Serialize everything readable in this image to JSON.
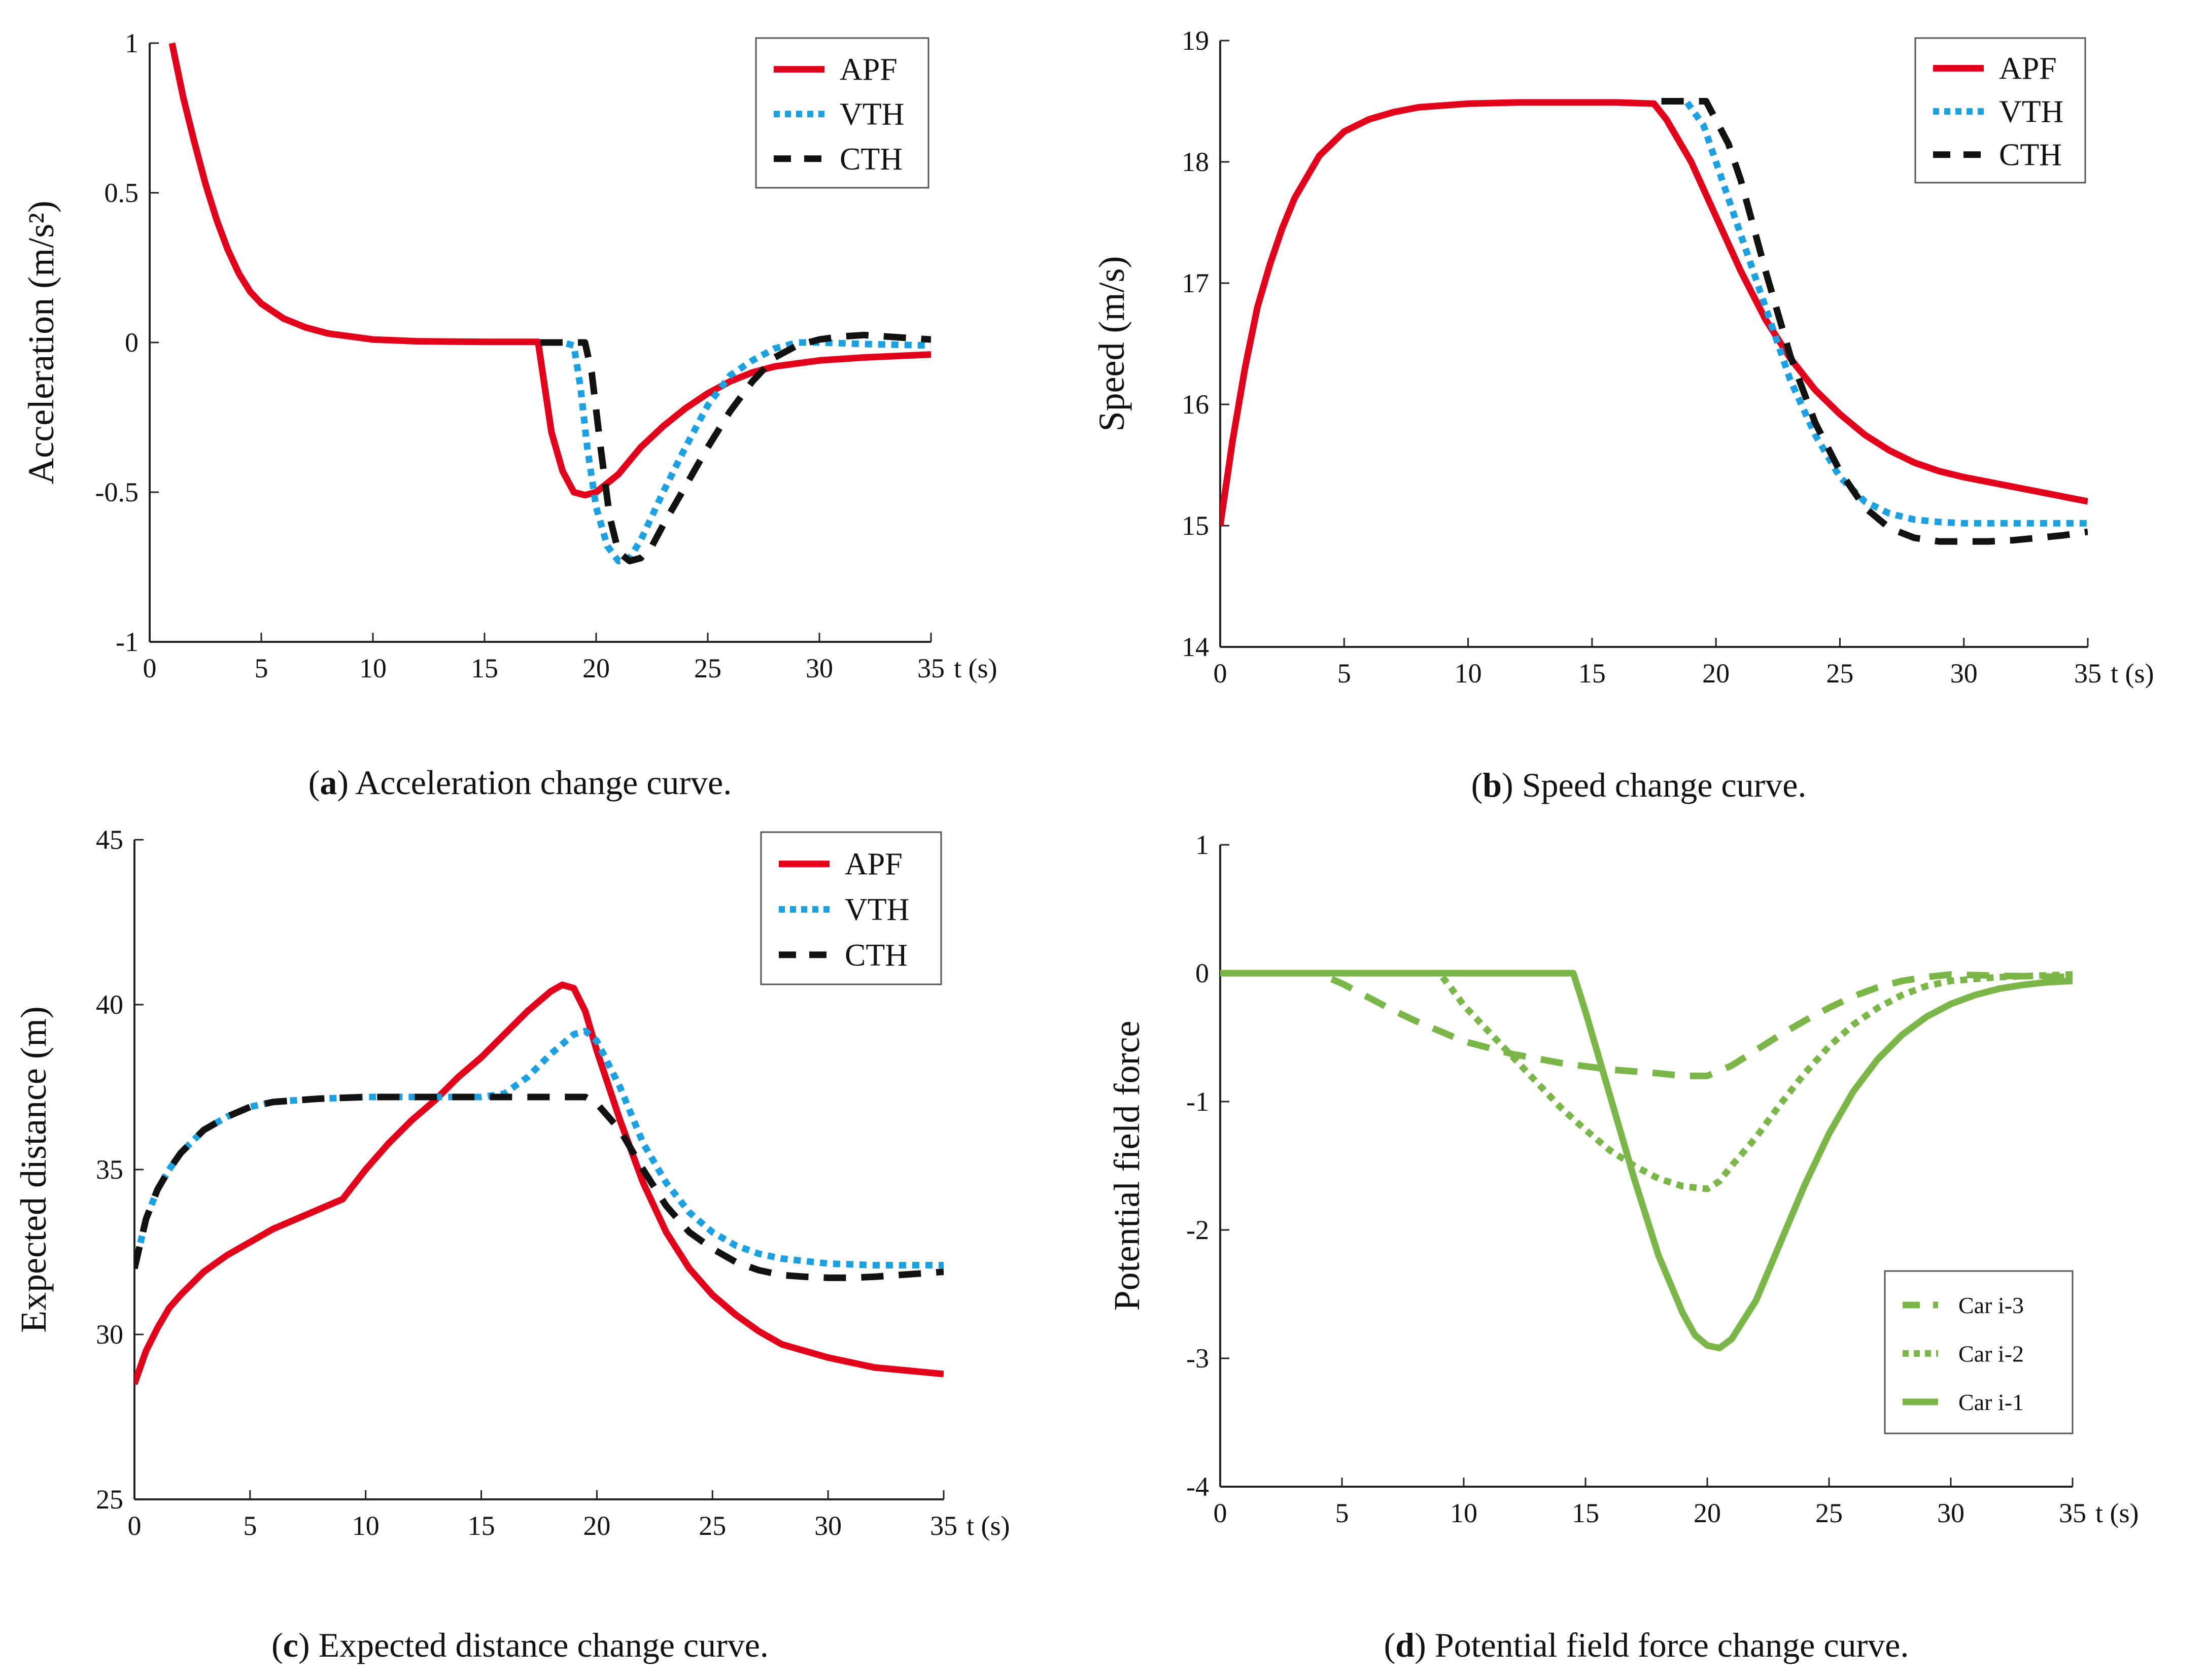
{
  "chart_data": [
    {
      "id": "a",
      "type": "line",
      "ylabel": "Acceleration (m/s²)",
      "xlabel": "t (s)",
      "xlim": [
        0,
        35
      ],
      "ylim": [
        -1,
        1
      ],
      "xticks": [
        0,
        5,
        10,
        15,
        20,
        25,
        30,
        35
      ],
      "yticks": [
        -1,
        -0.5,
        0,
        0.5,
        1
      ],
      "legend_position": "top-right",
      "caption": {
        "letter": "a",
        "text": "Acceleration change curve."
      },
      "series": [
        {
          "name": "APF",
          "color": "#e2001a",
          "style": "solid",
          "x": [
            1,
            1.5,
            2,
            2.5,
            3,
            3.5,
            4,
            4.5,
            5,
            6,
            7,
            8,
            10,
            12,
            15,
            17.4,
            17.7,
            18,
            18.5,
            19,
            19.5,
            20,
            21,
            22,
            23,
            24,
            25,
            26,
            27,
            28,
            30,
            32,
            35
          ],
          "y": [
            1.0,
            0.82,
            0.67,
            0.53,
            0.41,
            0.31,
            0.23,
            0.17,
            0.13,
            0.08,
            0.05,
            0.03,
            0.01,
            0.004,
            0.002,
            0.002,
            -0.15,
            -0.3,
            -0.43,
            -0.5,
            -0.51,
            -0.5,
            -0.44,
            -0.35,
            -0.28,
            -0.22,
            -0.17,
            -0.13,
            -0.1,
            -0.08,
            -0.06,
            -0.05,
            -0.04
          ]
        },
        {
          "name": "VTH",
          "color": "#1ba1e2",
          "style": "dotted",
          "x": [
            17.5,
            18.5,
            19,
            19.3,
            19.6,
            20,
            20.5,
            21,
            21.5,
            22,
            22.5,
            23,
            24,
            25,
            26,
            27,
            28,
            29,
            30,
            32,
            35
          ],
          "y": [
            0,
            0,
            -0.01,
            -0.15,
            -0.35,
            -0.55,
            -0.68,
            -0.73,
            -0.72,
            -0.66,
            -0.58,
            -0.5,
            -0.35,
            -0.21,
            -0.11,
            -0.06,
            -0.02,
            0.0,
            0.0,
            -0.005,
            -0.01
          ]
        },
        {
          "name": "CTH",
          "color": "#111111",
          "style": "dashed",
          "x": [
            17.5,
            19.5,
            19.8,
            20.2,
            20.6,
            21,
            21.5,
            22,
            22.5,
            23,
            24,
            25,
            26,
            27,
            28,
            29,
            30,
            31,
            32,
            33,
            34,
            35
          ],
          "y": [
            0,
            0,
            -0.1,
            -0.35,
            -0.58,
            -0.7,
            -0.73,
            -0.72,
            -0.68,
            -0.61,
            -0.48,
            -0.35,
            -0.23,
            -0.13,
            -0.05,
            -0.01,
            0.01,
            0.02,
            0.025,
            0.02,
            0.015,
            0.01
          ]
        }
      ]
    },
    {
      "id": "b",
      "type": "line",
      "ylabel": "Speed (m/s)",
      "xlabel": "t (s)",
      "xlim": [
        0,
        35
      ],
      "ylim": [
        14,
        19
      ],
      "xticks": [
        0,
        5,
        10,
        15,
        20,
        25,
        30,
        35
      ],
      "yticks": [
        14,
        15,
        16,
        17,
        18,
        19
      ],
      "legend_position": "top-right",
      "caption": {
        "letter": "b",
        "text": "Speed change curve."
      },
      "series": [
        {
          "name": "APF",
          "color": "#e2001a",
          "style": "solid",
          "x": [
            0,
            0.5,
            1,
            1.5,
            2,
            2.5,
            3,
            4,
            5,
            6,
            7,
            8,
            10,
            12,
            14,
            16,
            17.5,
            18,
            19,
            20,
            21,
            22,
            23,
            24,
            25,
            26,
            27,
            28,
            29,
            30,
            32,
            35
          ],
          "y": [
            15.0,
            15.7,
            16.3,
            16.8,
            17.15,
            17.45,
            17.7,
            18.05,
            18.25,
            18.35,
            18.41,
            18.45,
            18.48,
            18.49,
            18.49,
            18.49,
            18.48,
            18.35,
            18.0,
            17.55,
            17.1,
            16.7,
            16.38,
            16.12,
            15.92,
            15.75,
            15.62,
            15.52,
            15.45,
            15.4,
            15.32,
            15.2
          ]
        },
        {
          "name": "VTH",
          "color": "#1ba1e2",
          "style": "dotted",
          "x": [
            17.8,
            18.8,
            19.5,
            20,
            21,
            22,
            23,
            24,
            25,
            26,
            27,
            28,
            29,
            30,
            32,
            35
          ],
          "y": [
            18.5,
            18.5,
            18.3,
            18.0,
            17.4,
            16.8,
            16.2,
            15.75,
            15.4,
            15.2,
            15.1,
            15.05,
            15.03,
            15.02,
            15.02,
            15.02
          ]
        },
        {
          "name": "CTH",
          "color": "#111111",
          "style": "dashed",
          "x": [
            17.8,
            19.6,
            20.5,
            21,
            22,
            23,
            24,
            25,
            26,
            27,
            28,
            29,
            30,
            31,
            32,
            33,
            34,
            35
          ],
          "y": [
            18.5,
            18.5,
            18.15,
            17.85,
            17.1,
            16.4,
            15.85,
            15.45,
            15.15,
            14.98,
            14.9,
            14.87,
            14.87,
            14.87,
            14.88,
            14.9,
            14.92,
            14.95
          ]
        }
      ]
    },
    {
      "id": "c",
      "type": "line",
      "ylabel": "Expected distance (m)",
      "xlabel": "t (s)",
      "xlim": [
        0,
        35
      ],
      "ylim": [
        25,
        45
      ],
      "xticks": [
        0,
        5,
        10,
        15,
        20,
        25,
        30,
        35
      ],
      "yticks": [
        25,
        30,
        35,
        40,
        45
      ],
      "legend_position": "top-right",
      "caption": {
        "letter": "c",
        "text": "Expected distance change curve."
      },
      "series": [
        {
          "name": "APF",
          "color": "#e2001a",
          "style": "solid",
          "x": [
            0,
            0.5,
            1,
            1.5,
            2,
            3,
            4,
            5,
            6,
            7,
            8,
            9,
            10,
            11,
            12,
            13,
            14,
            15,
            16,
            17,
            18,
            18.5,
            19,
            19.5,
            20,
            21,
            22,
            23,
            24,
            25,
            26,
            27,
            28,
            30,
            32,
            35
          ],
          "y": [
            28.5,
            29.5,
            30.2,
            30.8,
            31.2,
            31.9,
            32.4,
            32.8,
            33.2,
            33.5,
            33.8,
            34.1,
            35.0,
            35.8,
            36.5,
            37.1,
            37.8,
            38.4,
            39.1,
            39.8,
            40.4,
            40.6,
            40.5,
            39.8,
            38.6,
            36.5,
            34.6,
            33.1,
            32.0,
            31.2,
            30.6,
            30.1,
            29.7,
            29.3,
            29.0,
            28.8
          ]
        },
        {
          "name": "VTH",
          "color": "#1ba1e2",
          "style": "dotted",
          "x": [
            0,
            0.5,
            1,
            1.5,
            2,
            3,
            4,
            5,
            6,
            7,
            8,
            10,
            12,
            14,
            15,
            16,
            17,
            18,
            19,
            19.5,
            20,
            21,
            22,
            23,
            24,
            25,
            26,
            27,
            28,
            30,
            32,
            35
          ],
          "y": [
            32.0,
            33.5,
            34.4,
            35.0,
            35.5,
            36.2,
            36.6,
            36.9,
            37.05,
            37.1,
            37.15,
            37.2,
            37.2,
            37.2,
            37.2,
            37.3,
            37.8,
            38.5,
            39.1,
            39.2,
            38.9,
            37.5,
            35.8,
            34.6,
            33.7,
            33.1,
            32.7,
            32.45,
            32.3,
            32.15,
            32.1,
            32.1
          ]
        },
        {
          "name": "CTH",
          "color": "#111111",
          "style": "dashed",
          "x": [
            0,
            0.5,
            1,
            1.5,
            2,
            3,
            4,
            5,
            6,
            7,
            8,
            10,
            12,
            14,
            16,
            18,
            19.5,
            20,
            21,
            22,
            23,
            24,
            25,
            26,
            27,
            28,
            29,
            30,
            31,
            32,
            33,
            34,
            35
          ],
          "y": [
            32.0,
            33.5,
            34.4,
            35.0,
            35.5,
            36.2,
            36.6,
            36.9,
            37.05,
            37.1,
            37.15,
            37.2,
            37.2,
            37.2,
            37.2,
            37.2,
            37.2,
            37.0,
            36.2,
            35.0,
            33.9,
            33.1,
            32.6,
            32.2,
            31.95,
            31.8,
            31.75,
            31.72,
            31.72,
            31.75,
            31.8,
            31.85,
            31.9
          ]
        }
      ]
    },
    {
      "id": "d",
      "type": "line",
      "ylabel": "Potential field force",
      "xlabel": "t (s)",
      "xlim": [
        0,
        35
      ],
      "ylim": [
        -4,
        1
      ],
      "xticks": [
        0,
        5,
        10,
        15,
        20,
        25,
        30,
        35
      ],
      "yticks": [
        -4,
        -3,
        -2,
        -1,
        0,
        1
      ],
      "legend_position": "bottom-right",
      "caption": {
        "letter": "d",
        "text": "Potential field force change curve."
      },
      "series": [
        {
          "name": "Car i-3",
          "color": "#7ab648",
          "style": "dashed",
          "x": [
            0,
            4,
            5,
            6,
            7,
            8,
            9,
            10,
            12,
            14,
            16,
            18,
            19,
            20,
            21,
            22,
            23,
            24,
            25,
            26,
            27,
            28,
            29,
            30,
            32,
            35
          ],
          "y": [
            0,
            0,
            -0.08,
            -0.18,
            -0.28,
            -0.37,
            -0.45,
            -0.53,
            -0.63,
            -0.7,
            -0.75,
            -0.78,
            -0.8,
            -0.8,
            -0.72,
            -0.6,
            -0.48,
            -0.37,
            -0.27,
            -0.18,
            -0.11,
            -0.06,
            -0.03,
            -0.01,
            -0.02,
            -0.03
          ]
        },
        {
          "name": "Car i-2",
          "color": "#7ab648",
          "style": "dotted",
          "x": [
            0,
            9,
            9.5,
            10,
            11,
            12,
            13,
            14,
            15,
            16,
            17,
            18,
            19,
            20,
            20.5,
            21,
            22,
            23,
            24,
            25,
            26,
            27,
            28,
            29,
            30,
            32,
            35
          ],
          "y": [
            0,
            0,
            -0.12,
            -0.25,
            -0.45,
            -0.65,
            -0.85,
            -1.05,
            -1.22,
            -1.38,
            -1.5,
            -1.6,
            -1.66,
            -1.68,
            -1.62,
            -1.5,
            -1.28,
            -1.02,
            -0.78,
            -0.57,
            -0.4,
            -0.27,
            -0.17,
            -0.1,
            -0.06,
            -0.03,
            -0.01
          ]
        },
        {
          "name": "Car i-1",
          "color": "#7ab648",
          "style": "solid",
          "x": [
            0,
            14.5,
            15,
            16,
            17,
            18,
            19,
            19.5,
            20,
            20.5,
            21,
            22,
            23,
            24,
            25,
            26,
            27,
            28,
            29,
            30,
            31,
            32,
            33,
            34,
            35
          ],
          "y": [
            0,
            0,
            -0.3,
            -0.95,
            -1.6,
            -2.2,
            -2.65,
            -2.82,
            -2.9,
            -2.92,
            -2.85,
            -2.55,
            -2.1,
            -1.65,
            -1.25,
            -0.92,
            -0.67,
            -0.48,
            -0.34,
            -0.24,
            -0.17,
            -0.12,
            -0.09,
            -0.07,
            -0.06
          ]
        }
      ]
    }
  ]
}
